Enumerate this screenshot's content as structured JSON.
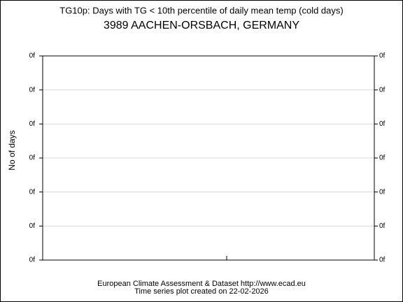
{
  "chart_data": {
    "type": "line",
    "title": "TG10p: Days with TG < 10th percentile of daily mean temp (cold days)",
    "subtitle": "3989 AACHEN-ORSBACH, GERMANY",
    "ylabel": "No of days",
    "ylim": [
      0,
      6
    ],
    "yticks": [
      {
        "value": 0,
        "label": "0f"
      },
      {
        "value": 1,
        "label": "0f"
      },
      {
        "value": 2,
        "label": "0f"
      },
      {
        "value": 3,
        "label": "0f"
      },
      {
        "value": 4,
        "label": "0f"
      },
      {
        "value": 5,
        "label": "0f"
      },
      {
        "value": 6,
        "label": "0f"
      }
    ],
    "grid": true,
    "series": [],
    "footer": [
      "European Climate Assessment & Dataset  http://www.ecad.eu",
      "Time series plot created on 22-02-2026"
    ]
  }
}
